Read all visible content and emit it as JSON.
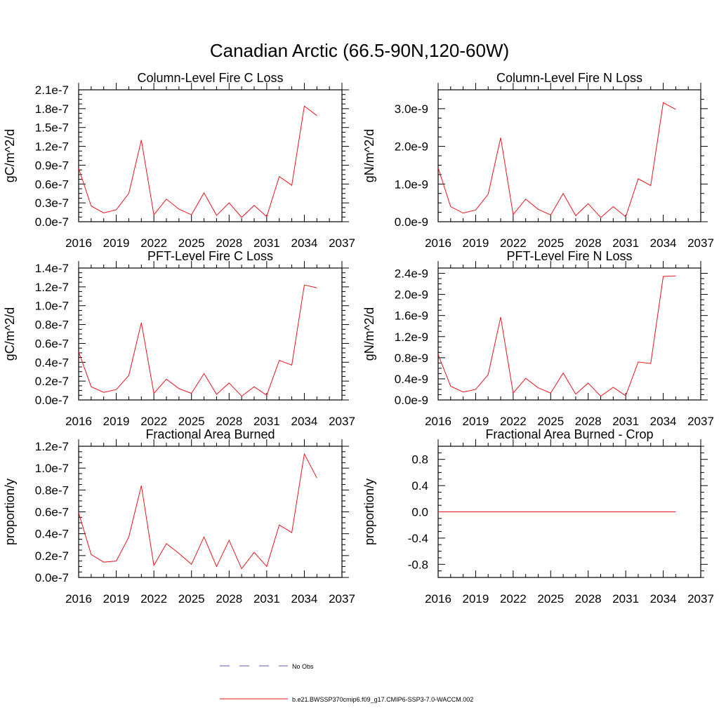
{
  "title": "Canadian Arctic (66.5-90N,120-60W)",
  "colors": {
    "series": "#e8151c",
    "obs": "#5a5aa8",
    "axis": "#000000"
  },
  "legend": {
    "obs_label": "No Obs",
    "series_label": "b.e21.BWSSP370cmip6.f09_g17.CMIP6-SSP3-7.0-WACCM.002"
  },
  "chart_data": [
    {
      "type": "line",
      "title": "Column-Level Fire C Loss",
      "ylabel": "gC/m^2/d",
      "xlim": [
        2016,
        2037
      ],
      "ylim": [
        0,
        2.1e-07
      ],
      "xticks": [
        2016,
        2019,
        2022,
        2025,
        2028,
        2031,
        2034,
        2037
      ],
      "xtick_labels": [
        "2016",
        "2019",
        "2022",
        "2025",
        "2028",
        "2031",
        "2034",
        "2037"
      ],
      "yticks": [
        0,
        3e-08,
        6e-08,
        9e-08,
        1.2e-07,
        1.5e-07,
        1.8e-07,
        2.1e-07
      ],
      "ytick_labels": [
        "0.0e-7",
        "0.3e-7",
        "0.6e-7",
        "0.9e-7",
        "1.2e-7",
        "1.5e-7",
        "1.8e-7",
        "2.1e-7"
      ],
      "x": [
        2016,
        2017,
        2018,
        2019,
        2020,
        2021,
        2022,
        2023,
        2024,
        2025,
        2026,
        2027,
        2028,
        2029,
        2030,
        2031,
        2032,
        2033,
        2034,
        2035
      ],
      "values": [
        8.5e-08,
        2.5e-08,
        1.4e-08,
        1.9e-08,
        4.5e-08,
        1.3e-07,
        1.1e-08,
        3.6e-08,
        2e-08,
        1.1e-08,
        4.6e-08,
        1e-08,
        3e-08,
        7e-09,
        2.6e-08,
        8e-09,
        7.2e-08,
        5.8e-08,
        1.84e-07,
        1.69e-07
      ]
    },
    {
      "type": "line",
      "title": "Column-Level Fire N Loss",
      "ylabel": "gN/m^2/d",
      "xlim": [
        2016,
        2037
      ],
      "ylim": [
        0,
        3.5e-09
      ],
      "xticks": [
        2016,
        2019,
        2022,
        2025,
        2028,
        2031,
        2034,
        2037
      ],
      "xtick_labels": [
        "2016",
        "2019",
        "2022",
        "2025",
        "2028",
        "2031",
        "2034",
        "2037"
      ],
      "yticks": [
        0,
        1e-09,
        2e-09,
        3e-09
      ],
      "ytick_labels": [
        "0.0e-9",
        "1.0e-9",
        "2.0e-9",
        "3.0e-9"
      ],
      "x": [
        2016,
        2017,
        2018,
        2019,
        2020,
        2021,
        2022,
        2023,
        2024,
        2025,
        2026,
        2027,
        2028,
        2029,
        2030,
        2031,
        2032,
        2033,
        2034,
        2035
      ],
      "values": [
        1.43e-09,
        4e-10,
        2.3e-10,
        3.1e-10,
        7.3e-10,
        2.23e-09,
        1.9e-10,
        6e-10,
        3.3e-10,
        1.8e-10,
        7.5e-10,
        1.6e-10,
        4.8e-10,
        1.1e-10,
        4e-10,
        1.3e-10,
        1.14e-09,
        9.6e-10,
        3.16e-09,
        2.98e-09
      ]
    },
    {
      "type": "line",
      "title": "PFT-Level Fire C Loss",
      "ylabel": "gC/m^2/d",
      "xlim": [
        2016,
        2037
      ],
      "ylim": [
        0,
        1.4e-07
      ],
      "xticks": [
        2016,
        2019,
        2022,
        2025,
        2028,
        2031,
        2034,
        2037
      ],
      "xtick_labels": [
        "2016",
        "2019",
        "2022",
        "2025",
        "2028",
        "2031",
        "2034",
        "2037"
      ],
      "yticks": [
        0,
        2e-08,
        4e-08,
        6e-08,
        8e-08,
        1e-07,
        1.2e-07,
        1.4e-07
      ],
      "ytick_labels": [
        "0.0e-7",
        "0.2e-7",
        "0.4e-7",
        "0.6e-7",
        "0.8e-7",
        "1.0e-7",
        "1.2e-7",
        "1.4e-7"
      ],
      "x": [
        2016,
        2017,
        2018,
        2019,
        2020,
        2021,
        2022,
        2023,
        2024,
        2025,
        2026,
        2027,
        2028,
        2029,
        2030,
        2031,
        2032,
        2033,
        2034,
        2035
      ],
      "values": [
        5.1e-08,
        1.4e-08,
        8e-09,
        1.1e-08,
        2.6e-08,
        8.2e-08,
        7e-09,
        2.2e-08,
        1.2e-08,
        7e-09,
        2.8e-08,
        6e-09,
        1.8e-08,
        4e-09,
        1.4e-08,
        5e-09,
        4.2e-08,
        3.7e-08,
        1.22e-07,
        1.19e-07
      ]
    },
    {
      "type": "line",
      "title": "PFT-Level Fire N Loss",
      "ylabel": "gN/m^2/d",
      "xlim": [
        2016,
        2037
      ],
      "ylim": [
        0,
        2.5e-09
      ],
      "xticks": [
        2016,
        2019,
        2022,
        2025,
        2028,
        2031,
        2034,
        2037
      ],
      "xtick_labels": [
        "2016",
        "2019",
        "2022",
        "2025",
        "2028",
        "2031",
        "2034",
        "2037"
      ],
      "yticks": [
        0,
        4e-10,
        8e-10,
        1.2e-09,
        1.6e-09,
        2e-09,
        2.4e-09
      ],
      "ytick_labels": [
        "0.0e-9",
        "0.4e-9",
        "0.8e-9",
        "1.2e-9",
        "1.6e-9",
        "2.0e-9",
        "2.4e-9"
      ],
      "x": [
        2016,
        2017,
        2018,
        2019,
        2020,
        2021,
        2022,
        2023,
        2024,
        2025,
        2026,
        2027,
        2028,
        2029,
        2030,
        2031,
        2032,
        2033,
        2034,
        2035
      ],
      "values": [
        8.6e-10,
        2.6e-10,
        1.5e-10,
        2e-10,
        4.8e-10,
        1.57e-09,
        1.3e-10,
        4.1e-10,
        2.3e-10,
        1.3e-10,
        5.1e-10,
        1.1e-10,
        3.2e-10,
        7e-11,
        2.4e-10,
        8e-11,
        7.2e-10,
        6.9e-10,
        2.34e-09,
        2.35e-09
      ]
    },
    {
      "type": "line",
      "title": "Fractional Area Burned",
      "ylabel": "proportion/y",
      "xlim": [
        2016,
        2037
      ],
      "ylim": [
        0,
        1.2e-07
      ],
      "xticks": [
        2016,
        2019,
        2022,
        2025,
        2028,
        2031,
        2034,
        2037
      ],
      "xtick_labels": [
        "2016",
        "2019",
        "2022",
        "2025",
        "2028",
        "2031",
        "2034",
        "2037"
      ],
      "yticks": [
        0,
        2e-08,
        4e-08,
        6e-08,
        8e-08,
        1e-07,
        1.2e-07
      ],
      "ytick_labels": [
        "0.0e-7",
        "0.2e-7",
        "0.4e-7",
        "0.6e-7",
        "0.8e-7",
        "1.0e-7",
        "1.2e-7"
      ],
      "x": [
        2016,
        2017,
        2018,
        2019,
        2020,
        2021,
        2022,
        2023,
        2024,
        2025,
        2026,
        2027,
        2028,
        2029,
        2030,
        2031,
        2032,
        2033,
        2034,
        2035
      ],
      "values": [
        5.9e-08,
        2.1e-08,
        1.4e-08,
        1.5e-08,
        3.7e-08,
        8.4e-08,
        1.1e-08,
        3.1e-08,
        2.2e-08,
        1.2e-08,
        3.7e-08,
        1e-08,
        3.4e-08,
        8e-09,
        2.3e-08,
        1e-08,
        4.8e-08,
        4.1e-08,
        1.13e-07,
        9.1e-08
      ]
    },
    {
      "type": "line",
      "title": "Fractional Area Burned - Crop",
      "ylabel": "proportion/y",
      "xlim": [
        2016,
        2037
      ],
      "ylim": [
        -1.0,
        1.0
      ],
      "xticks": [
        2016,
        2019,
        2022,
        2025,
        2028,
        2031,
        2034,
        2037
      ],
      "xtick_labels": [
        "2016",
        "2019",
        "2022",
        "2025",
        "2028",
        "2031",
        "2034",
        "2037"
      ],
      "yticks": [
        -0.8,
        -0.4,
        0,
        0.4,
        0.8
      ],
      "ytick_labels": [
        "-0.8",
        "-0.4",
        "0.0",
        "0.4",
        "0.8"
      ],
      "x": [
        2016,
        2017,
        2018,
        2019,
        2020,
        2021,
        2022,
        2023,
        2024,
        2025,
        2026,
        2027,
        2028,
        2029,
        2030,
        2031,
        2032,
        2033,
        2034,
        2035
      ],
      "values": [
        0,
        0,
        0,
        0,
        0,
        0,
        0,
        0,
        0,
        0,
        0,
        0,
        0,
        0,
        0,
        0,
        0,
        0,
        0,
        0
      ]
    }
  ]
}
